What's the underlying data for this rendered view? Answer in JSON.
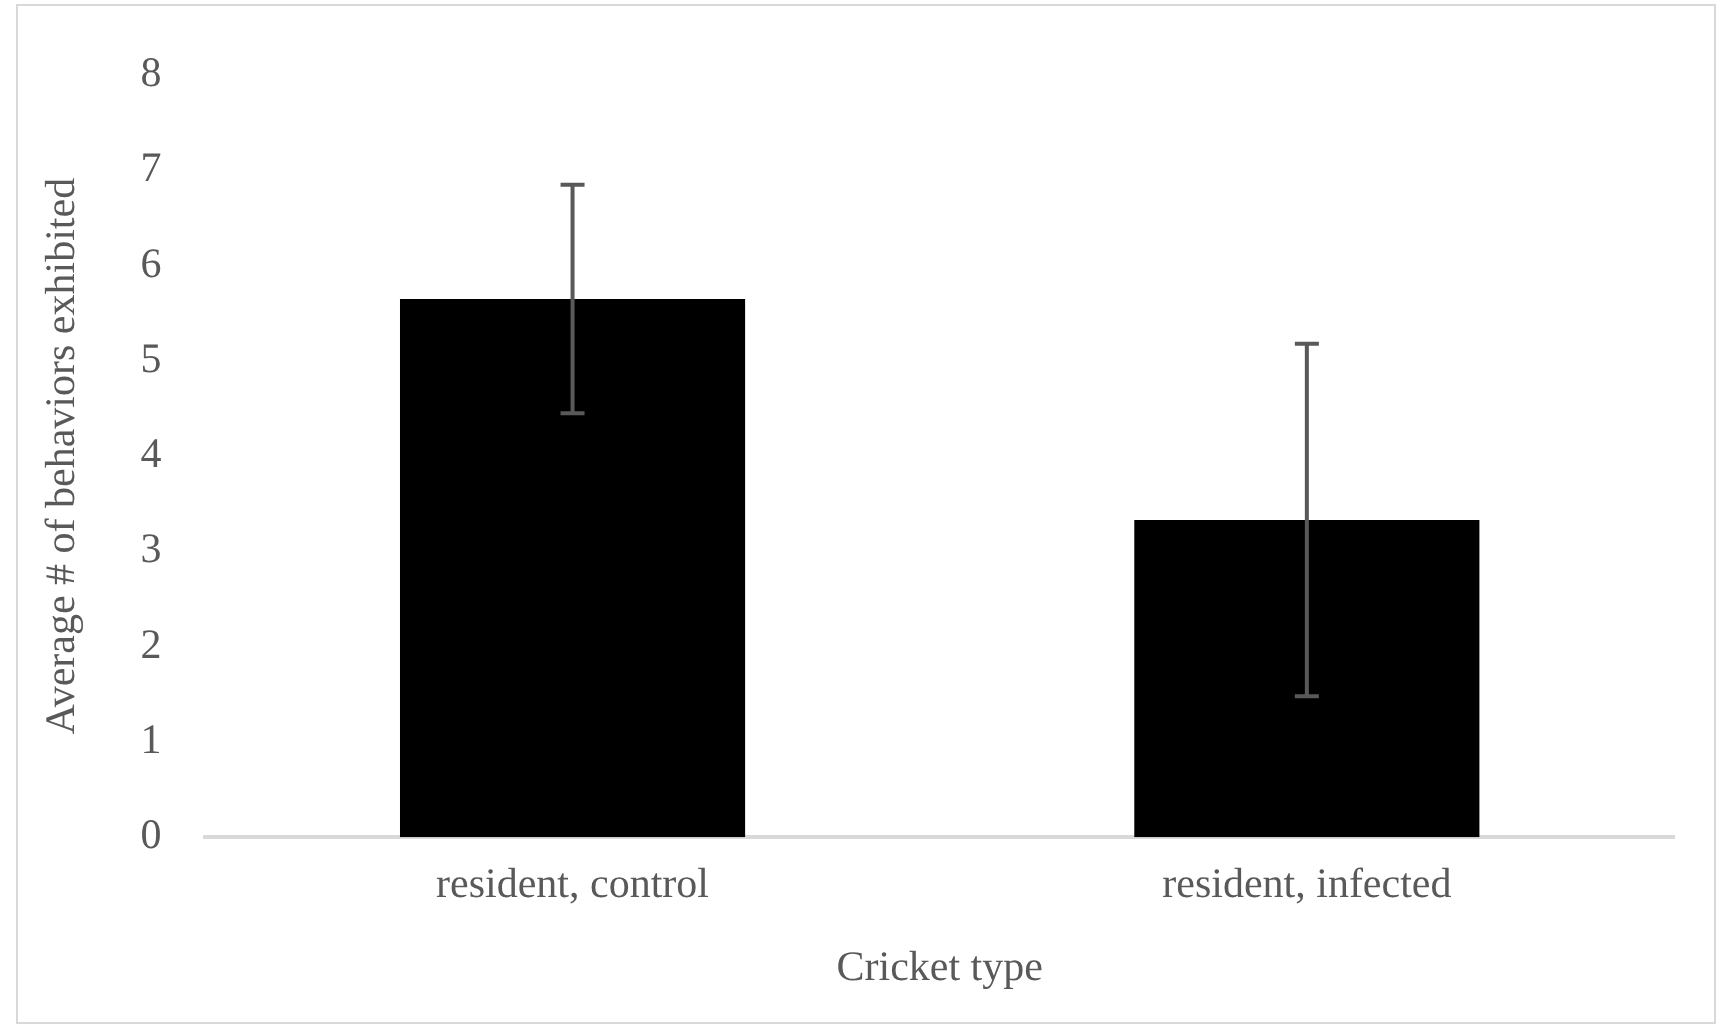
{
  "chart_data": {
    "type": "bar",
    "xlabel": "Cricket type",
    "ylabel": "Average # of behaviors exhibited",
    "categories": [
      "resident, control",
      "resident, infected"
    ],
    "values": [
      5.65,
      3.33
    ],
    "color": "#000000",
    "errors": [
      1.2,
      1.85
    ],
    "ylim": [
      0,
      8
    ],
    "yticks": [
      0,
      1,
      2,
      3,
      4,
      5,
      6,
      7,
      8
    ],
    "grid": false,
    "legend": false
  }
}
